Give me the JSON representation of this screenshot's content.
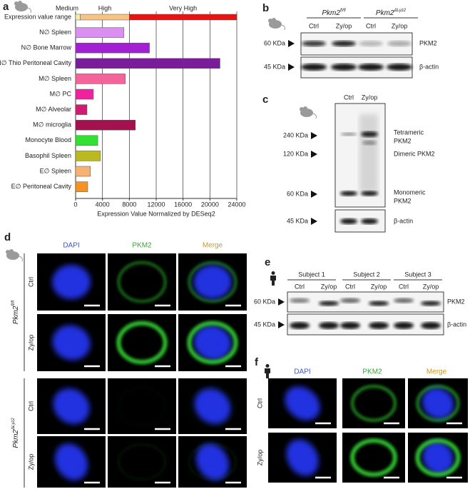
{
  "chart_data": {
    "type": "bar",
    "orientation": "horizontal",
    "categories": [
      "N∅ Spleen",
      "N∅ Bone Marrow",
      "N∅ Thio Peritoneal Cavity",
      "M∅ Spleen",
      "M∅ PC",
      "M∅ Alveolar",
      "M∅ microglia",
      "Monocyte Blood",
      "Basophil Spleen",
      "E∅ Spleen",
      "E∅ Peritoneal Cavity"
    ],
    "values": [
      7200,
      11000,
      21500,
      7400,
      2650,
      1700,
      8900,
      3300,
      3700,
      2200,
      1800
    ],
    "colors": [
      "#dd8ef2",
      "#a21fd4",
      "#7a1d98",
      "#f2649a",
      "#f0219c",
      "#d11a72",
      "#a3124e",
      "#34e034",
      "#b9b922",
      "#f6b270",
      "#f59222"
    ],
    "range": {
      "name": "Expression value range",
      "segments": [
        {
          "label": "Medium",
          "from": 0,
          "to": 700,
          "color": "#f6f0a6"
        },
        {
          "label": "High",
          "from": 700,
          "to": 8000,
          "color": "#f6c384"
        },
        {
          "label": "Very High",
          "from": 8000,
          "to": 24000,
          "color": "#e81212"
        }
      ]
    },
    "xlabel": "Expression Value Normalized by DESeq2",
    "xlim": [
      0,
      24000
    ],
    "xticks": [
      0,
      4000,
      8000,
      12000,
      16000,
      20000,
      24000
    ],
    "grid": true
  },
  "panel_labels": [
    "a",
    "b",
    "c",
    "d",
    "e",
    "f"
  ],
  "panel_b": {
    "groups": [
      {
        "name": "Pkm2",
        "sup": "fl/fl"
      },
      {
        "name": "Pkm2",
        "sup": "ΔLyz2"
      }
    ],
    "lanes": [
      "Ctrl",
      "Zy/op",
      "Ctrl",
      "Zy/op"
    ],
    "markers": [
      "60 KDa",
      "45 KDa"
    ],
    "bands": [
      "PKM2",
      "β-actin"
    ]
  },
  "panel_c": {
    "lanes": [
      "Ctrl",
      "Zy/op"
    ],
    "markers": [
      "240 KDa",
      "120 KDa",
      "60 KDa",
      "45 KDa"
    ],
    "bands": [
      [
        "Tetrameric",
        "PKM2"
      ],
      [
        "Dimeric PKM2"
      ],
      [
        "Monomeric",
        "PKM2"
      ],
      [
        "β-actin"
      ]
    ]
  },
  "panel_d": {
    "columns": [
      "DAPI",
      "PKM2",
      "Merge"
    ],
    "groups": [
      {
        "name": "Pkm2",
        "sup": "fl/fl"
      },
      {
        "name": "Pkm2",
        "sup": "ΔLyz2"
      }
    ],
    "rows": [
      "Ctrl",
      "Zy/op",
      "Ctrl",
      "Zy/op"
    ]
  },
  "panel_e": {
    "subjects": [
      "Subject 1",
      "Subject 2",
      "Subject 3"
    ],
    "lanes": [
      "Ctrl",
      "Zy/op"
    ],
    "markers": [
      "60 KDa",
      "45 KDa"
    ],
    "bands": [
      "PKM2",
      "β-actin"
    ]
  },
  "panel_f": {
    "columns": [
      "DAPI",
      "PKM2",
      "Merge"
    ],
    "rows": [
      "Ctrl",
      "Zy/op"
    ]
  }
}
